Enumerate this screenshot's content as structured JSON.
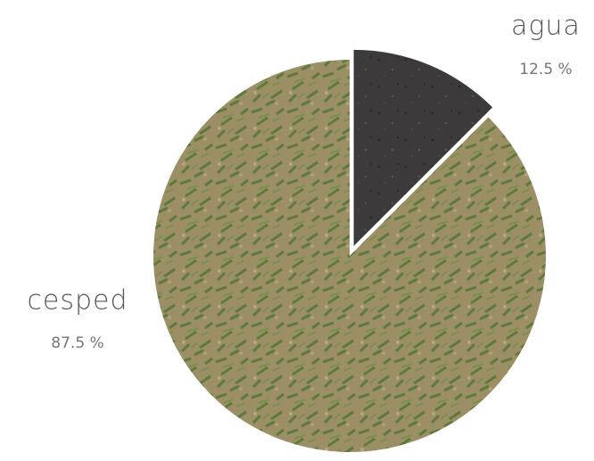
{
  "chart_data": {
    "type": "pie",
    "categories": [
      "agua",
      "cesped"
    ],
    "values": [
      12.5,
      87.5
    ],
    "value_labels": [
      "12.5 %",
      "87.5 %"
    ],
    "colors": [
      "#3c3a3a",
      "#8f8a5c"
    ]
  }
}
